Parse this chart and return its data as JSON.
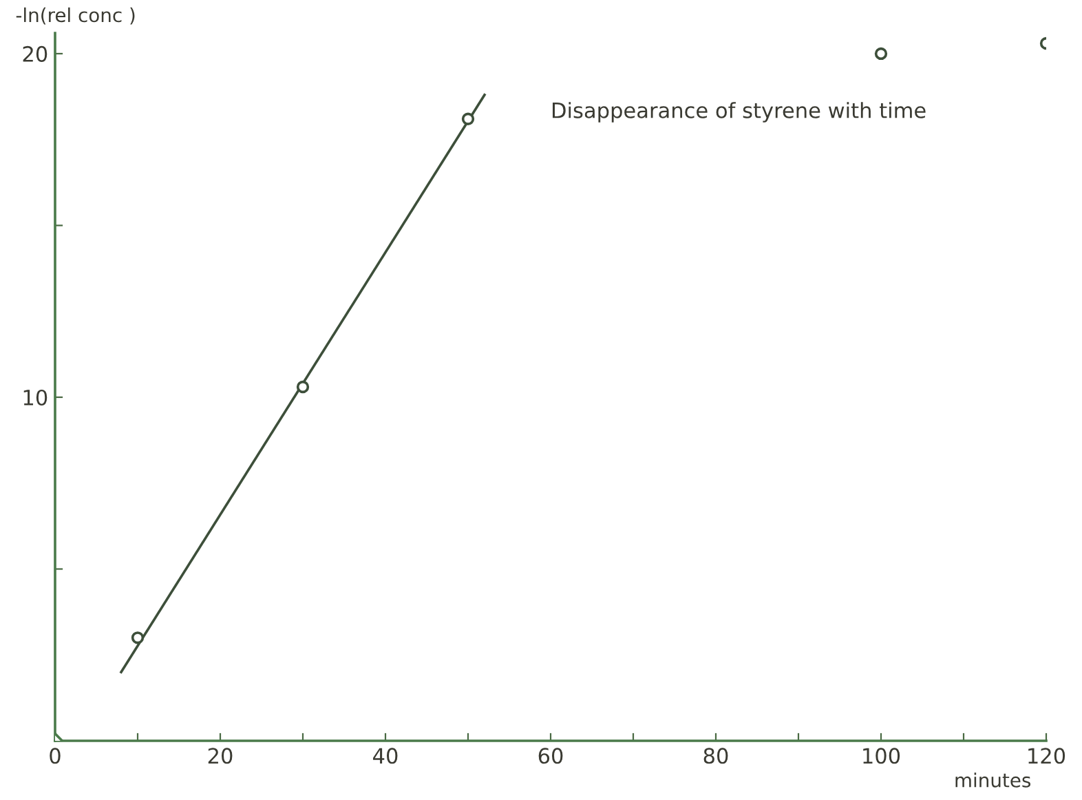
{
  "chart_data": {
    "type": "scatter",
    "title": "Disappearance of styrene with time",
    "xlabel": "minutes",
    "ylabel": "-ln(rel conc )",
    "series": [
      {
        "color": "#3d4f3a",
        "marker": "circle",
        "x": [
          10,
          30,
          50,
          100,
          120
        ],
        "values": [
          3.0,
          10.3,
          18.1,
          20.0,
          20.3
        ]
      },
      {
        "color": "#4a7a4a",
        "marker": "diamond",
        "x": [
          0
        ],
        "values": [
          0
        ]
      },
      {
        "type": "line",
        "color": "#3d4f3a",
        "marker": "none",
        "line_style": "solid",
        "x": [
          8,
          52
        ],
        "values": [
          2.0,
          18.8
        ]
      }
    ],
    "xlim": [
      0,
      120
    ],
    "ylim": [
      0,
      20.6
    ],
    "xticks": [
      0,
      {
        "value": 10,
        "label": null
      },
      20,
      {
        "value": 30,
        "label": null
      },
      40,
      {
        "value": 50,
        "label": null
      },
      60,
      {
        "value": 70,
        "label": null
      },
      80,
      {
        "value": 90,
        "label": null
      },
      100,
      {
        "value": 110,
        "label": null
      },
      120
    ],
    "yticks": [
      {
        "value": 0,
        "label": null
      },
      {
        "value": 5,
        "label": null
      },
      10,
      {
        "value": 15,
        "label": null
      },
      20
    ],
    "grid": false,
    "legend": false
  }
}
